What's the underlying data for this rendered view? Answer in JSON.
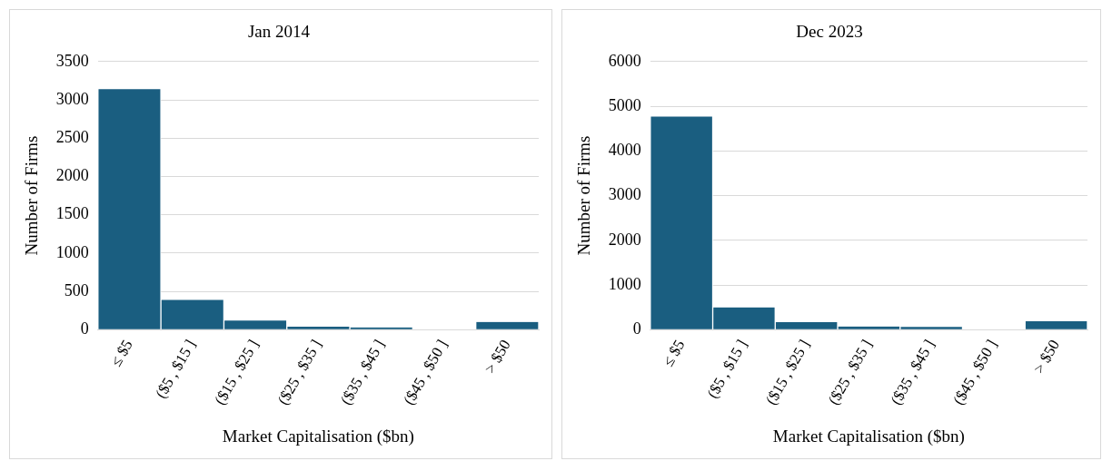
{
  "chart_data": [
    {
      "type": "bar",
      "title": "Jan 2014",
      "xlabel": "Market Capitalisation ($bn)",
      "ylabel": "Number of Firms",
      "categories": [
        "≤ $5",
        "($5 , $15 ]",
        "($15 , $25 ]",
        "($25 , $35 ]",
        "($35 , $45 ]",
        "($45 , $50 ]",
        "> $50"
      ],
      "values": [
        3140,
        390,
        120,
        40,
        30,
        0,
        100
      ],
      "color": "#1a5e80",
      "ylim": [
        0,
        3500
      ],
      "yticks": [
        0,
        500,
        1000,
        1500,
        2000,
        2500,
        3000,
        3500
      ],
      "grid": "y"
    },
    {
      "type": "bar",
      "title": "Dec 2023",
      "xlabel": "Market Capitalisation ($bn)",
      "ylabel": "Number of Firms",
      "categories": [
        "≤ $5",
        "($5 , $15 ]",
        "($15 , $25 ]",
        "($25 , $35 ]",
        "($35 , $45 ]",
        "($45 , $50 ]",
        "> $50"
      ],
      "values": [
        4770,
        500,
        170,
        70,
        60,
        0,
        190
      ],
      "color": "#1a5e80",
      "ylim": [
        0,
        6000
      ],
      "yticks": [
        0,
        1000,
        2000,
        3000,
        4000,
        5000,
        6000
      ],
      "grid": "y"
    }
  ]
}
